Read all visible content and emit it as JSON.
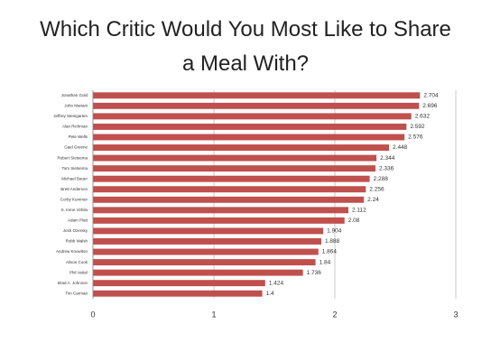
{
  "chart_data": {
    "type": "hbar",
    "title": "Which Critic Would You Most Like to Share a Meal With?",
    "categories": [
      "Jonathan Gold",
      "John Mariani",
      "Jeffrey Steingarten",
      "Alan Richman",
      "Pete Wells",
      "Gael Greene",
      "Robert Sietsema",
      "Tom Sietsema",
      "Michael Bauer",
      "Brett Anderson",
      "Corby Kummer",
      "S. Irene Virbila",
      "Adam Platt",
      "Josh Ozersky",
      "Robb Walsh",
      "Andrew Knowlton",
      "Alison Cook",
      "Phil Vettel",
      "Brad A. Johnson",
      "Tim Carman"
    ],
    "values": [
      2.704,
      2.696,
      2.632,
      2.592,
      2.576,
      2.448,
      2.344,
      2.336,
      2.288,
      2.256,
      2.24,
      2.112,
      2.08,
      1.904,
      1.888,
      1.864,
      1.84,
      1.736,
      1.424,
      1.4
    ],
    "color": "#c0504d",
    "xlim": [
      0,
      3
    ],
    "xticks": [
      0,
      1,
      2,
      3
    ],
    "grid": true
  }
}
